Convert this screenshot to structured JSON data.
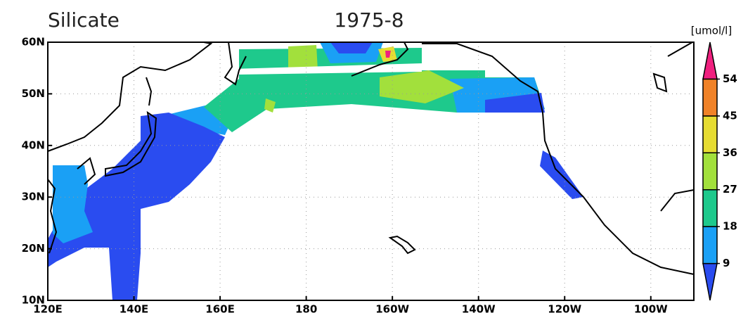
{
  "title": "Silicate",
  "subtitle": "1975-8",
  "unit": "[umol/l]",
  "x_axis": {
    "ticks": [
      "120E",
      "140E",
      "160E",
      "180",
      "160W",
      "140W",
      "120W",
      "100W"
    ]
  },
  "y_axis": {
    "ticks": [
      "10N",
      "20N",
      "30N",
      "40N",
      "50N",
      "60N"
    ]
  },
  "colorbar": {
    "levels": [
      9,
      18,
      27,
      36,
      45,
      54
    ],
    "colors": [
      "#2a4cf0",
      "#1aa0f5",
      "#1ec98c",
      "#a2e03c",
      "#e6dc32",
      "#f08228",
      "#f0207f"
    ]
  }
}
